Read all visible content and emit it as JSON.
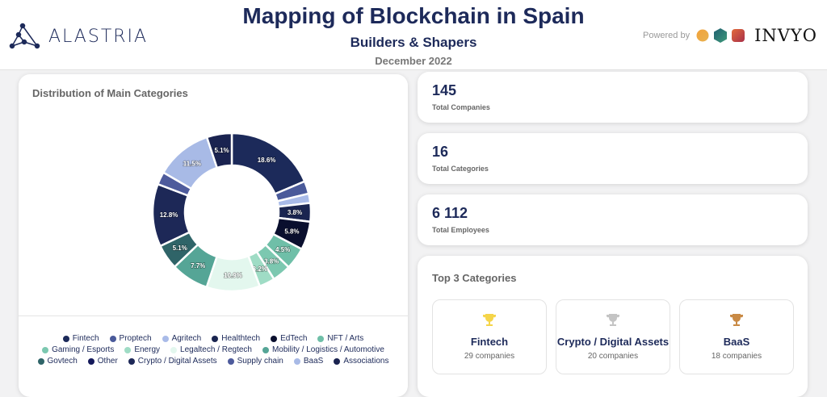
{
  "header": {
    "logo_text": "ALASTRIA",
    "title": "Mapping of Blockchain in Spain",
    "subtitle": "Builders & Shapers",
    "date": "December 2022",
    "powered_by": "Powered by",
    "partner_logo": "INVYO"
  },
  "stats": [
    {
      "value": "145",
      "label": "Total Companies"
    },
    {
      "value": "16",
      "label": "Total Categories"
    },
    {
      "value": "6 112",
      "label": "Total Employees"
    }
  ],
  "top3": {
    "title": "Top 3 Categories",
    "items": [
      {
        "name": "Fintech",
        "count": "29 companies",
        "trophy_color": "#f5d54a"
      },
      {
        "name": "Crypto / Digital Assets",
        "count": "20 companies",
        "trophy_color": "#c4c4c4"
      },
      {
        "name": "BaaS",
        "count": "18 companies",
        "trophy_color": "#c98a45"
      }
    ]
  },
  "chart_data": {
    "type": "pie",
    "donut": true,
    "title": "Distribution of Main Categories",
    "legend_position": "bottom",
    "unit": "%",
    "categories": [
      "Fintech",
      "Proptech",
      "Agritech",
      "Healthtech",
      "EdTech",
      "NFT / Arts",
      "Gaming / Esports",
      "Energy",
      "Legaltech / Regtech",
      "Mobility / Logistics / Automotive",
      "Govtech",
      "Other",
      "Crypto / Digital Assets",
      "Supply chain",
      "BaaS",
      "Associations"
    ],
    "values": [
      18.6,
      2.6,
      1.9,
      3.8,
      5.8,
      4.5,
      3.8,
      3.2,
      10.9,
      7.7,
      5.1,
      0.0,
      12.8,
      2.6,
      11.5,
      5.1
    ],
    "colors": [
      "#1c2a5a",
      "#4a5a9a",
      "#a9bbe8",
      "#1a2550",
      "#0a0f2e",
      "#6fbfa8",
      "#7cc8b0",
      "#9fdcc5",
      "#e3f7ee",
      "#55a596",
      "#2f6468",
      "#14195a",
      "#1d2857",
      "#4e5b9c",
      "#a8bae6",
      "#1a2350"
    ]
  }
}
